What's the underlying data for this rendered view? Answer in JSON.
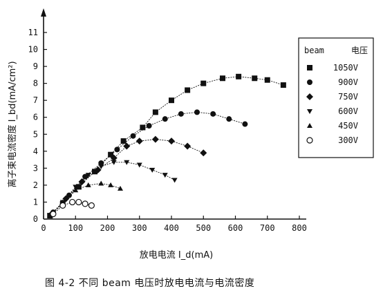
{
  "chart_data": {
    "type": "scatter",
    "title": "",
    "caption": "图 4-2 不同 beam 电压时放电电流与电流密度",
    "xlabel": "放电电流  I_d(mA)",
    "ylabel": "离子束电流密度  I_bd(mA/cm²)",
    "xlim": [
      0,
      800
    ],
    "ylim": [
      0,
      11
    ],
    "x_ticks": [
      "0",
      "100",
      "200",
      "300",
      "400",
      "500",
      "600",
      "700",
      "800"
    ],
    "y_ticks": [
      "0",
      "1",
      "2",
      "3",
      "4",
      "5",
      "6",
      "7",
      "8",
      "9",
      "10",
      "11"
    ],
    "grid": false,
    "legend": {
      "placement": "right",
      "title_left": "beam",
      "title_right": "电压"
    },
    "series": [
      {
        "name": "1050V",
        "marker": "square",
        "x": [
          20,
          60,
          110,
          160,
          210,
          250,
          310,
          350,
          400,
          450,
          500,
          560,
          610,
          660,
          700,
          750
        ],
        "y": [
          0.2,
          0.9,
          1.9,
          2.8,
          3.8,
          4.6,
          5.4,
          6.3,
          7.0,
          7.6,
          8.0,
          8.3,
          8.4,
          8.3,
          8.2,
          7.9
        ]
      },
      {
        "name": "900V",
        "marker": "circle",
        "x": [
          30,
          80,
          130,
          180,
          230,
          280,
          330,
          380,
          430,
          480,
          530,
          580,
          630
        ],
        "y": [
          0.4,
          1.4,
          2.5,
          3.3,
          4.1,
          4.9,
          5.5,
          5.9,
          6.2,
          6.3,
          6.2,
          5.9,
          5.6
        ]
      },
      {
        "name": "750V",
        "marker": "diamond",
        "x": [
          25,
          70,
          120,
          170,
          220,
          260,
          300,
          350,
          400,
          450,
          500
        ],
        "y": [
          0.3,
          1.2,
          2.2,
          2.9,
          3.6,
          4.3,
          4.6,
          4.7,
          4.6,
          4.3,
          3.9
        ]
      },
      {
        "name": "600V",
        "marker": "triangle-down",
        "x": [
          20,
          60,
          100,
          140,
          180,
          220,
          260,
          300,
          340,
          380,
          410
        ],
        "y": [
          0.2,
          1.0,
          1.9,
          2.6,
          3.1,
          3.35,
          3.35,
          3.2,
          2.9,
          2.6,
          2.3
        ]
      },
      {
        "name": "450V",
        "marker": "triangle-up",
        "x": [
          20,
          60,
          100,
          140,
          180,
          210,
          240
        ],
        "y": [
          0.2,
          1.0,
          1.7,
          2.0,
          2.1,
          2.0,
          1.8
        ]
      },
      {
        "name": "300V",
        "marker": "open-circle",
        "x": [
          30,
          60,
          90,
          110,
          130,
          150
        ],
        "y": [
          0.3,
          0.8,
          1.0,
          1.0,
          0.9,
          0.8
        ]
      }
    ]
  }
}
